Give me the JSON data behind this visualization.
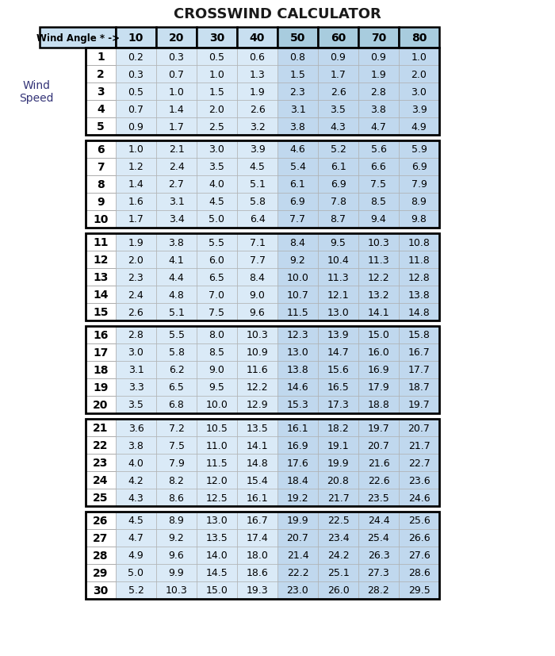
{
  "title": "CROSSWIND CALCULATOR",
  "header_label": "Wind Angle * ->",
  "angles": [
    10,
    20,
    30,
    40,
    50,
    60,
    70,
    80
  ],
  "groups": [
    [
      1,
      2,
      3,
      4,
      5
    ],
    [
      6,
      7,
      8,
      9,
      10
    ],
    [
      11,
      12,
      13,
      14,
      15
    ],
    [
      16,
      17,
      18,
      19,
      20
    ],
    [
      21,
      22,
      23,
      24,
      25
    ],
    [
      26,
      27,
      28,
      29,
      30
    ]
  ],
  "table_data": [
    [
      0.2,
      0.3,
      0.5,
      0.6,
      0.8,
      0.9,
      0.9,
      1.0
    ],
    [
      0.3,
      0.7,
      1.0,
      1.3,
      1.5,
      1.7,
      1.9,
      2.0
    ],
    [
      0.5,
      1.0,
      1.5,
      1.9,
      2.3,
      2.6,
      2.8,
      3.0
    ],
    [
      0.7,
      1.4,
      2.0,
      2.6,
      3.1,
      3.5,
      3.8,
      3.9
    ],
    [
      0.9,
      1.7,
      2.5,
      3.2,
      3.8,
      4.3,
      4.7,
      4.9
    ],
    [
      1.0,
      2.1,
      3.0,
      3.9,
      4.6,
      5.2,
      5.6,
      5.9
    ],
    [
      1.2,
      2.4,
      3.5,
      4.5,
      5.4,
      6.1,
      6.6,
      6.9
    ],
    [
      1.4,
      2.7,
      4.0,
      5.1,
      6.1,
      6.9,
      7.5,
      7.9
    ],
    [
      1.6,
      3.1,
      4.5,
      5.8,
      6.9,
      7.8,
      8.5,
      8.9
    ],
    [
      1.7,
      3.4,
      5.0,
      6.4,
      7.7,
      8.7,
      9.4,
      9.8
    ],
    [
      1.9,
      3.8,
      5.5,
      7.1,
      8.4,
      9.5,
      10.3,
      10.8
    ],
    [
      2.0,
      4.1,
      6.0,
      7.7,
      9.2,
      10.4,
      11.3,
      11.8
    ],
    [
      2.3,
      4.4,
      6.5,
      8.4,
      10.0,
      11.3,
      12.2,
      12.8
    ],
    [
      2.4,
      4.8,
      7.0,
      9.0,
      10.7,
      12.1,
      13.2,
      13.8
    ],
    [
      2.6,
      5.1,
      7.5,
      9.6,
      11.5,
      13.0,
      14.1,
      14.8
    ],
    [
      2.8,
      5.5,
      8.0,
      10.3,
      12.3,
      13.9,
      15.0,
      15.8
    ],
    [
      3.0,
      5.8,
      8.5,
      10.9,
      13.0,
      14.7,
      16.0,
      16.7
    ],
    [
      3.1,
      6.2,
      9.0,
      11.6,
      13.8,
      15.6,
      16.9,
      17.7
    ],
    [
      3.3,
      6.5,
      9.5,
      12.2,
      14.6,
      16.5,
      17.9,
      18.7
    ],
    [
      3.5,
      6.8,
      10.0,
      12.9,
      15.3,
      17.3,
      18.8,
      19.7
    ],
    [
      3.6,
      7.2,
      10.5,
      13.5,
      16.1,
      18.2,
      19.7,
      20.7
    ],
    [
      3.8,
      7.5,
      11.0,
      14.1,
      16.9,
      19.1,
      20.7,
      21.7
    ],
    [
      4.0,
      7.9,
      11.5,
      14.8,
      17.6,
      19.9,
      21.6,
      22.7
    ],
    [
      4.2,
      8.2,
      12.0,
      15.4,
      18.4,
      20.8,
      22.6,
      23.6
    ],
    [
      4.3,
      8.6,
      12.5,
      16.1,
      19.2,
      21.7,
      23.5,
      24.6
    ],
    [
      4.5,
      8.9,
      13.0,
      16.7,
      19.9,
      22.5,
      24.4,
      25.6
    ],
    [
      4.7,
      9.2,
      13.5,
      17.4,
      20.7,
      23.4,
      25.4,
      26.6
    ],
    [
      4.9,
      9.6,
      14.0,
      18.0,
      21.4,
      24.2,
      26.3,
      27.6
    ],
    [
      5.0,
      9.9,
      14.5,
      18.6,
      22.2,
      25.1,
      27.3,
      28.6
    ],
    [
      5.2,
      10.3,
      15.0,
      19.3,
      23.0,
      26.0,
      28.2,
      29.5
    ]
  ],
  "title_color": "#1a1a1a",
  "header_bg_light": "#c8dff0",
  "header_bg_dark": "#a8ccde",
  "cell_bg_light": "#daeaf7",
  "cell_bg_dark": "#c0d8ee",
  "speed_num_bg": "#ffffff",
  "wind_speed_label_color": "#333377",
  "header_text_bold": true
}
